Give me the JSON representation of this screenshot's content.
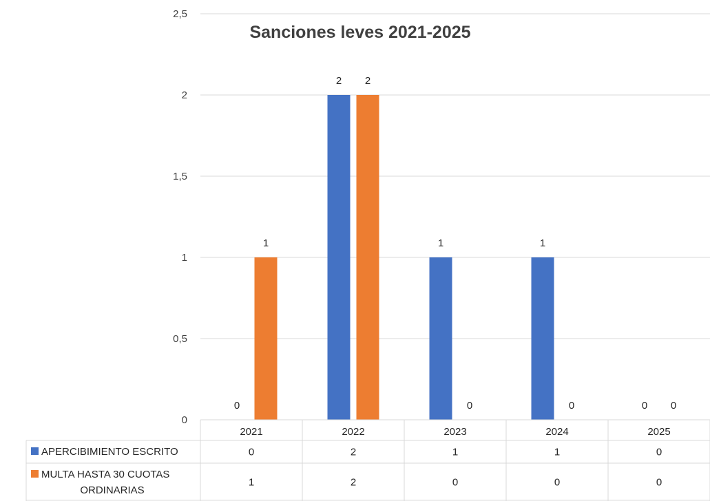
{
  "chart_data": {
    "type": "bar",
    "title": "Sanciones leves 2021-2025",
    "categories": [
      "2021",
      "2022",
      "2023",
      "2024",
      "2025"
    ],
    "series": [
      {
        "name": "APERCIBIMIENTO ESCRITO",
        "values": [
          0,
          2,
          1,
          1,
          0
        ],
        "color": "#4472C4"
      },
      {
        "name": "MULTA HASTA 30 CUOTAS ORDINARIAS",
        "values": [
          1,
          2,
          0,
          0,
          0
        ],
        "color": "#ED7D31"
      }
    ],
    "ylim": [
      0,
      2.5
    ],
    "yticks": [
      "0",
      "0,5",
      "1",
      "1,5",
      "2",
      "2,5"
    ],
    "grid": true,
    "legend": "data-table"
  }
}
